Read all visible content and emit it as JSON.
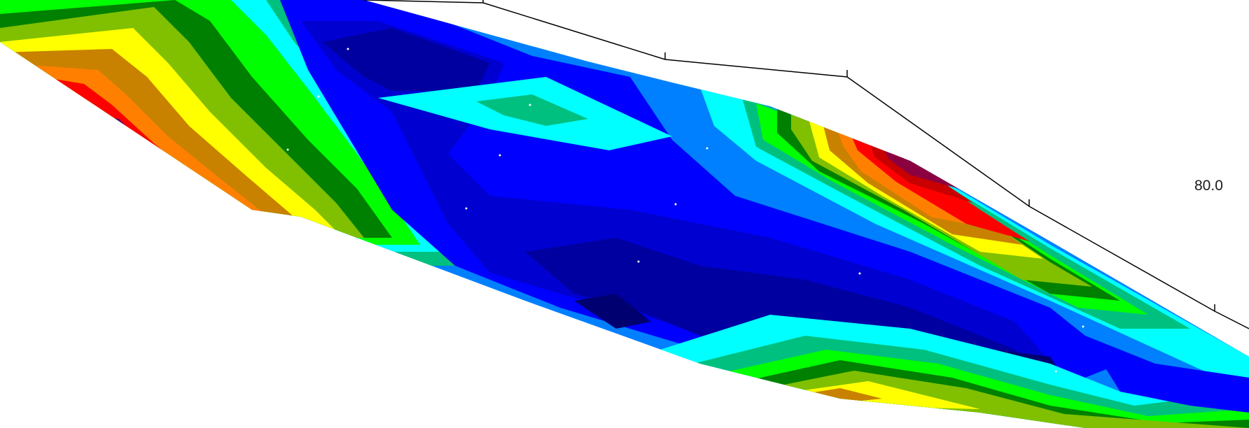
{
  "axis": {
    "depth_label": "80.0"
  },
  "palette": {
    "dark-purple": "#5a0a6e",
    "purple-red": "#8b0040",
    "dark-red": "#c80000",
    "red": "#ff0000",
    "orange": "#ff8000",
    "dark-orange": "#c88200",
    "yellow": "#ffff00",
    "yellow-green": "#80c000",
    "dark-green": "#008000",
    "green": "#00ff00",
    "teal": "#00c080",
    "cyan": "#00ffff",
    "sky-blue": "#0080ff",
    "blue": "#0000ff",
    "medium-blue": "#0000d0",
    "navy": "#0000a0",
    "deep-navy": "#000070"
  }
}
